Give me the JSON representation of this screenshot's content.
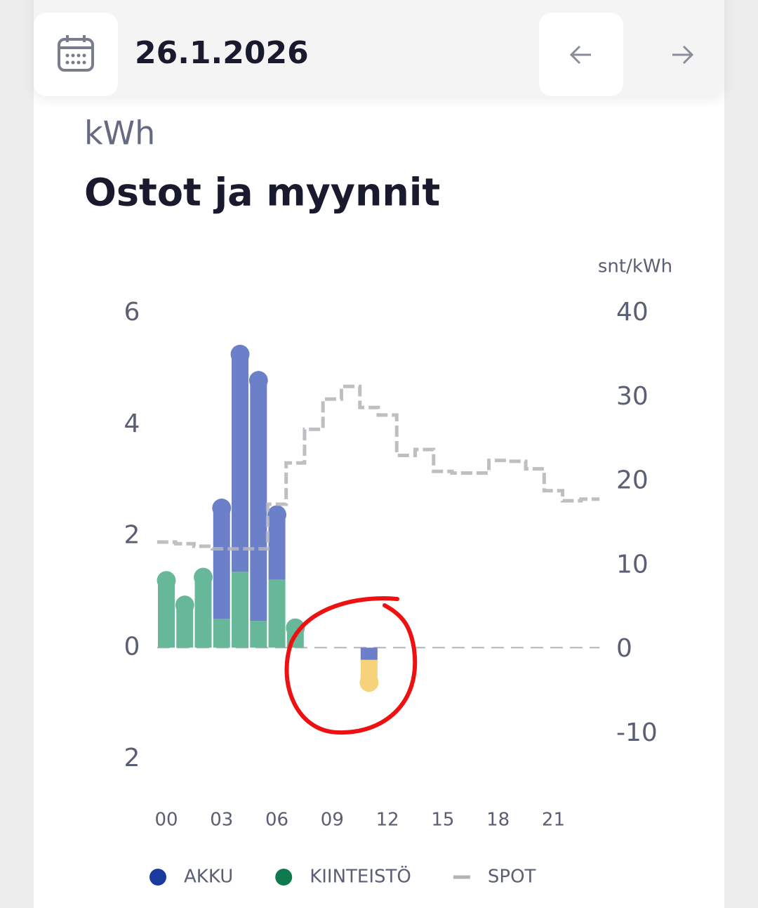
{
  "header": {
    "date": "26.1.2026"
  },
  "chart_data": {
    "type": "bar",
    "subtitle": "kWh",
    "title": "Ostot ja myynnit",
    "y2_label": "snt/kWh",
    "stacked": true,
    "categories": [
      "00",
      null,
      null,
      "03",
      null,
      null,
      "06",
      null,
      null,
      "09",
      null,
      null,
      "12",
      null,
      null,
      "15",
      null,
      null,
      "18",
      null,
      null,
      "21",
      null,
      null
    ],
    "series": [
      {
        "name": "AKKU",
        "color": "#6b80c8",
        "legend_color": "#1a3aa0",
        "values": [
          null,
          null,
          null,
          2.06,
          3.98,
          4.39,
          1.24,
          null,
          null,
          null,
          null,
          -0.22,
          null,
          null,
          null,
          null,
          null,
          null,
          null,
          null,
          null,
          null,
          null,
          null
        ]
      },
      {
        "name": "KIINTEISTÖ",
        "color": "#66b898",
        "legend_color": "#0f7a50",
        "values": [
          1.28,
          0.84,
          1.34,
          0.52,
          1.36,
          0.48,
          1.22,
          0.43,
          null,
          null,
          null,
          null,
          null,
          null,
          null,
          null,
          null,
          null,
          null,
          null,
          null,
          null,
          null,
          null
        ]
      },
      {
        "name": null,
        "color": "#f6d27a",
        "values": [
          null,
          null,
          null,
          null,
          null,
          null,
          null,
          null,
          null,
          null,
          null,
          -0.48,
          null,
          null,
          null,
          null,
          null,
          null,
          null,
          null,
          null,
          null,
          null,
          null
        ]
      },
      {
        "name": "SPOT",
        "type": "step",
        "axis": "y2",
        "color": "#b4b4b8",
        "dashed": true,
        "values": [
          12.8,
          12.6,
          12.3,
          12.0,
          12.0,
          12.0,
          17.3,
          22.2,
          26.2,
          29.8,
          31.3,
          28.8,
          27.9,
          23.1,
          23.8,
          21.2,
          21.0,
          21.0,
          22.5,
          22.4,
          21.5,
          18.9,
          17.7,
          17.9
        ]
      }
    ],
    "ylim": [
      -2,
      6
    ],
    "yticks": [
      {
        "value": -2,
        "label": "2"
      },
      0,
      2,
      4,
      6
    ],
    "y2lim": [
      -13,
      40
    ],
    "y2ticks": [
      -10,
      0,
      10,
      20,
      30,
      40
    ],
    "legend": "bottom"
  }
}
